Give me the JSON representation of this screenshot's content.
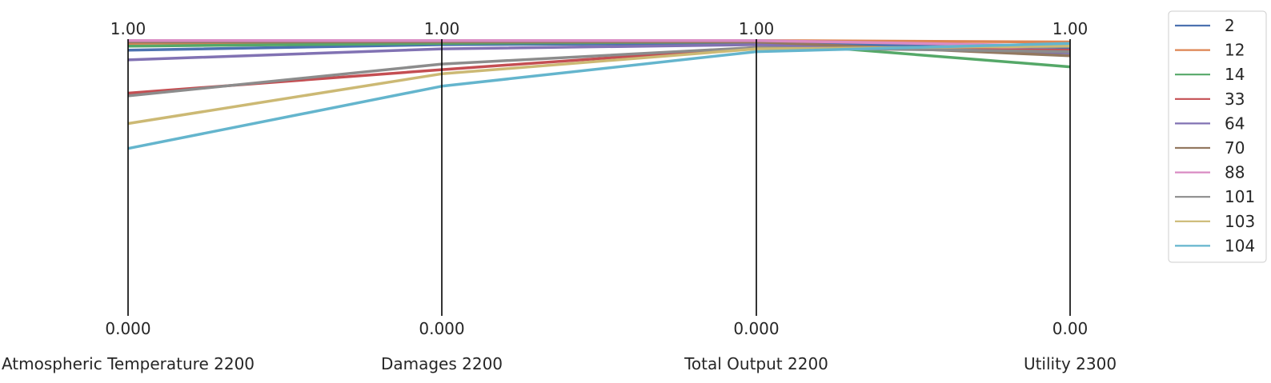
{
  "chart_data": {
    "type": "parallel-coordinates",
    "axes": [
      {
        "label": "Atmospheric Temperature 2200",
        "top_tick": "1.00",
        "bottom_tick": "0.000"
      },
      {
        "label": "Damages 2200",
        "top_tick": "1.00",
        "bottom_tick": "0.000"
      },
      {
        "label": "Total Output 2200",
        "top_tick": "1.00",
        "bottom_tick": "0.000"
      },
      {
        "label": "Utility 2300",
        "top_tick": "1.00",
        "bottom_tick": "0.00"
      }
    ],
    "ylim": [
      0,
      1
    ],
    "grid": false,
    "legend_placement": "right",
    "series": [
      {
        "name": "2",
        "color": "#4c72b0",
        "values": [
          0.96,
          0.98,
          0.985,
          0.97
        ]
      },
      {
        "name": "12",
        "color": "#dd8452",
        "values": [
          0.985,
          0.99,
          0.995,
          0.99
        ]
      },
      {
        "name": "14",
        "color": "#55a868",
        "values": [
          0.975,
          0.985,
          0.99,
          0.9
        ]
      },
      {
        "name": "33",
        "color": "#c44e52",
        "values": [
          0.805,
          0.89,
          0.97,
          0.96
        ]
      },
      {
        "name": "64",
        "color": "#8172b3",
        "values": [
          0.925,
          0.965,
          0.98,
          0.95
        ]
      },
      {
        "name": "70",
        "color": "#937860",
        "values": [
          0.99,
          0.99,
          0.99,
          0.94
        ]
      },
      {
        "name": "88",
        "color": "#da8bc3",
        "values": [
          0.995,
          0.995,
          0.995,
          0.975
        ]
      },
      {
        "name": "101",
        "color": "#8c8c8c",
        "values": [
          0.795,
          0.91,
          0.97,
          0.955
        ]
      },
      {
        "name": "103",
        "color": "#ccb974",
        "values": [
          0.695,
          0.875,
          0.965,
          0.975
        ]
      },
      {
        "name": "104",
        "color": "#64b5cd",
        "values": [
          0.605,
          0.83,
          0.955,
          0.985
        ]
      }
    ]
  }
}
